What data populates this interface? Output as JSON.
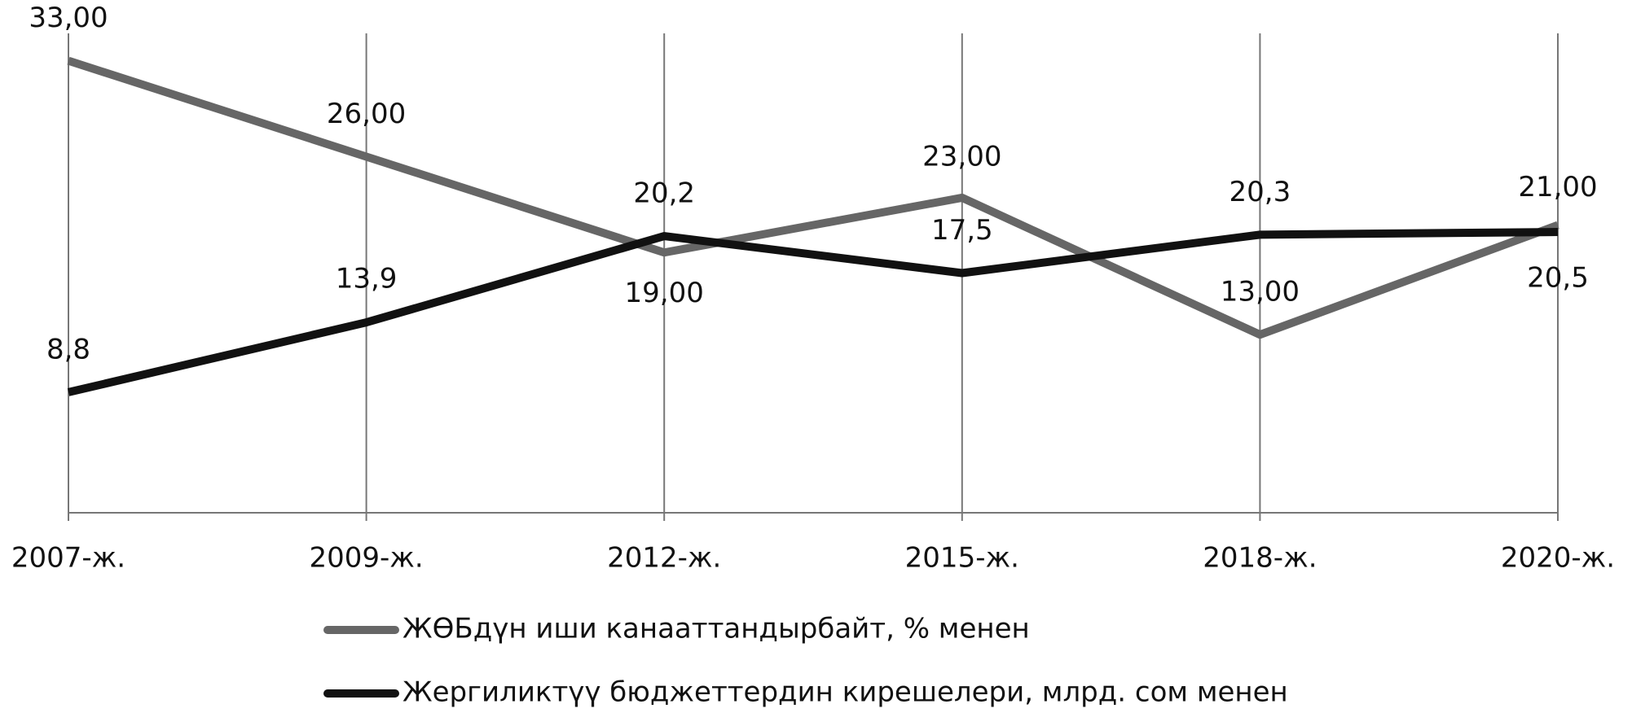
{
  "chart_data": {
    "type": "line",
    "categories": [
      "2007-ж.",
      "2009-ж.",
      "2012-ж.",
      "2015-ж.",
      "2018-ж.",
      "2020-ж."
    ],
    "series": [
      {
        "name": "ЖӨБдүн иши канааттандырбайт, % менен",
        "color": "#666666",
        "values": [
          33,
          26,
          19,
          23,
          13,
          21
        ],
        "value_labels": [
          "33,00",
          "26,00",
          "19,00",
          "23,00",
          "13,00",
          "21,00"
        ]
      },
      {
        "name": "Жергиликтүү бюджеттердин кирешелери, млрд. сом менен",
        "color": "#111111",
        "values": [
          8.8,
          13.9,
          20.2,
          17.5,
          20.3,
          20.5
        ],
        "value_labels": [
          "8,8",
          "13,9",
          "20,2",
          "17,5",
          "20,3",
          "20,5"
        ]
      }
    ],
    "ylim": [
      0,
      35
    ],
    "grid": true
  }
}
